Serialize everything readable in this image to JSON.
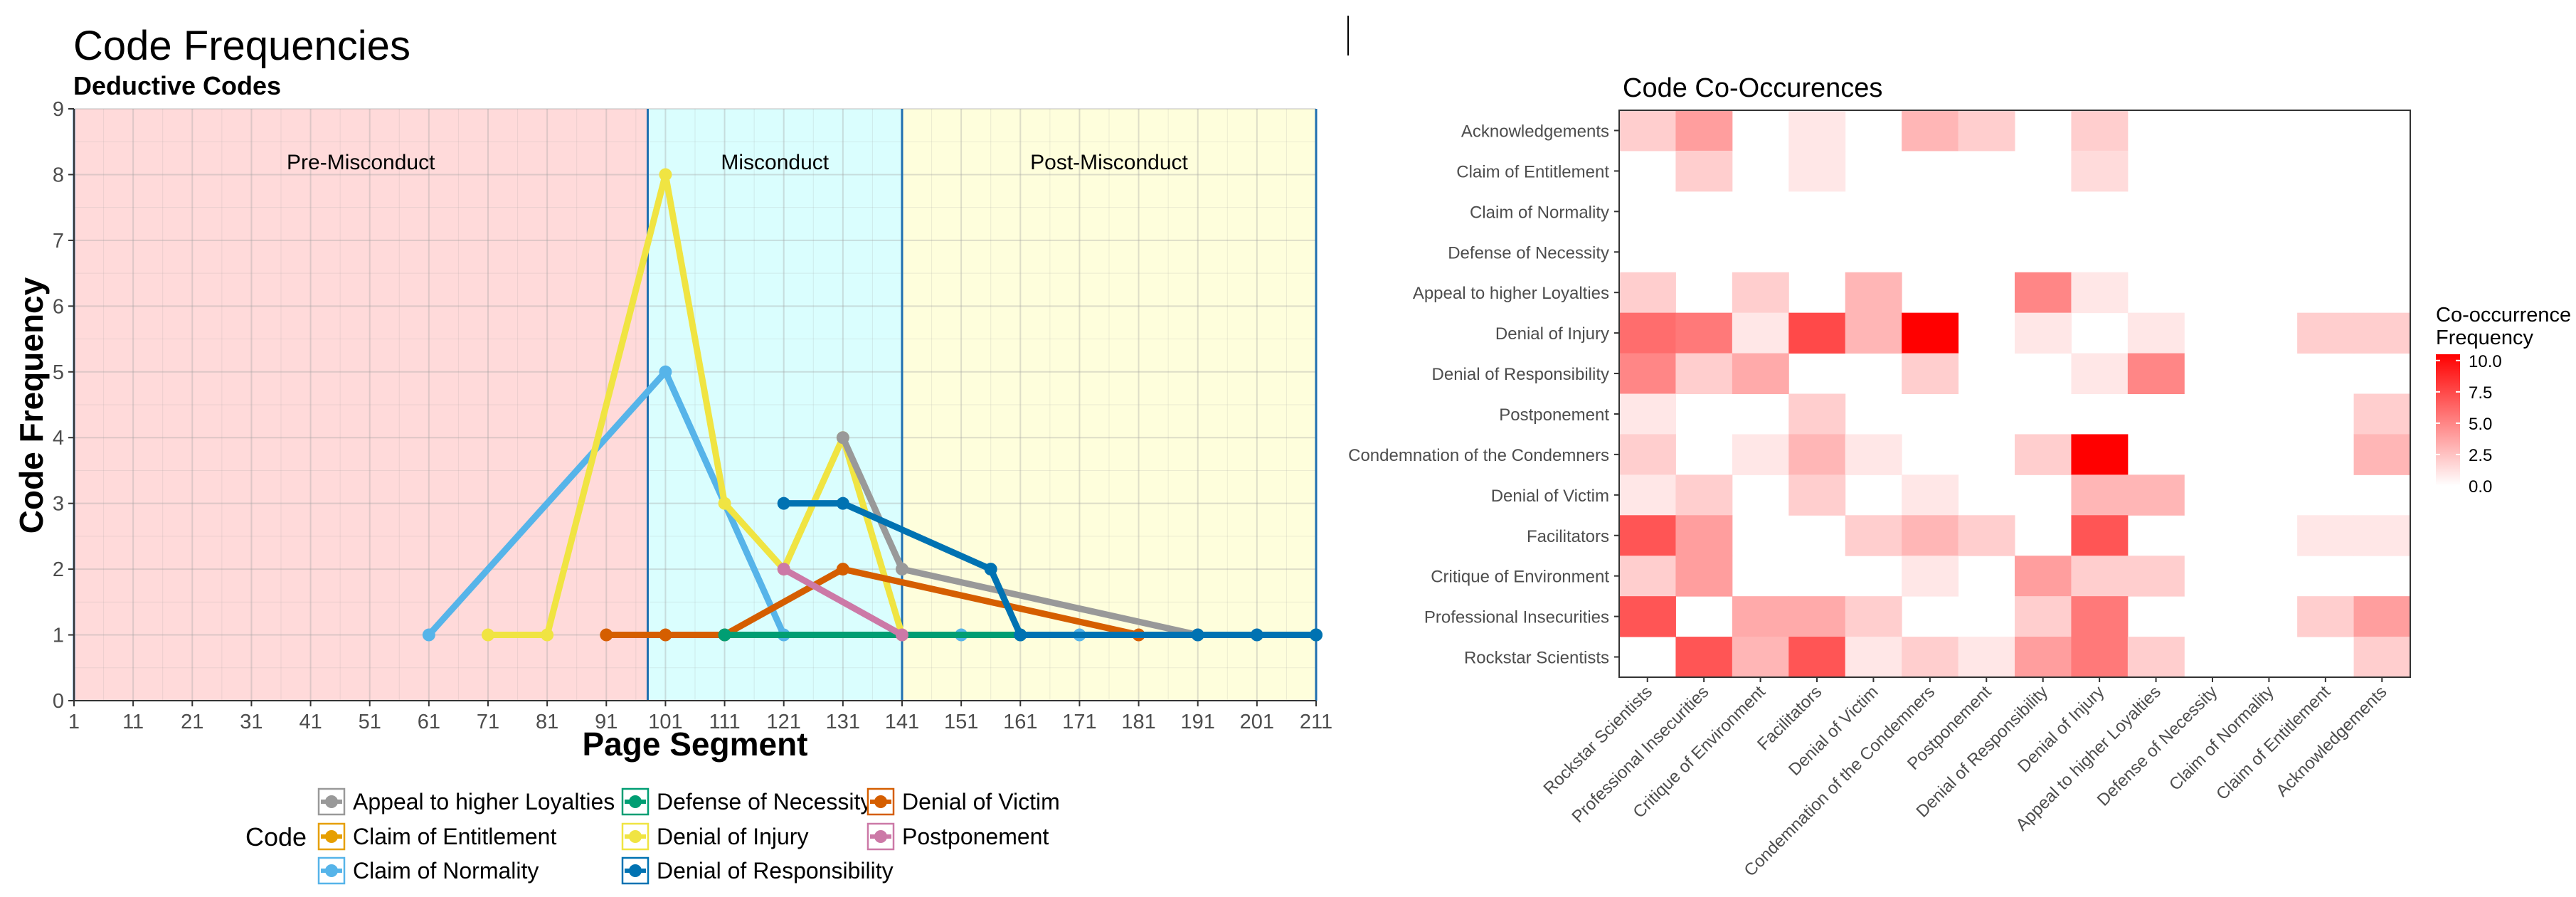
{
  "left_chart": {
    "title": "Code Frequencies",
    "subtitle": "Deductive Codes",
    "xlabel": "Page Segment",
    "ylabel": "Code Frequency",
    "legend_title": "Code"
  },
  "right_chart": {
    "title": "Code Co-Occurences",
    "legend_title_line1": "Co-occurrence",
    "legend_title_line2": "Frequency"
  },
  "chart_data": [
    {
      "type": "line",
      "title": "Code Frequencies",
      "subtitle": "Deductive Codes",
      "xlabel": "Page Segment",
      "ylabel": "Code Frequency",
      "xlim": [
        1,
        211
      ],
      "ylim": [
        0,
        9
      ],
      "x_ticks": [
        "1",
        "11",
        "21",
        "31",
        "41",
        "51",
        "61",
        "71",
        "81",
        "91",
        "101",
        "111",
        "121",
        "131",
        "141",
        "151",
        "161",
        "171",
        "181",
        "191",
        "201",
        "211"
      ],
      "y_ticks": [
        "0",
        "1",
        "2",
        "3",
        "4",
        "5",
        "6",
        "7",
        "8",
        "9"
      ],
      "grid": true,
      "legend_position": "bottom",
      "regions": [
        {
          "label": "Pre-Misconduct",
          "from": 1,
          "to": 98,
          "color": "#ffdada"
        },
        {
          "label": "Misconduct",
          "from": 98,
          "to": 141,
          "color": "#dafefe"
        },
        {
          "label": "Post-Misconduct",
          "from": 141,
          "to": 211,
          "color": "#fefedc"
        }
      ],
      "series": [
        {
          "name": "Claim of Normality",
          "color": "#56b4e9",
          "x": [
            61,
            101,
            121,
            151,
            171
          ],
          "y": [
            1,
            5,
            1,
            1,
            1
          ]
        },
        {
          "name": "Denial of Injury",
          "color": "#f0e442",
          "x": [
            71,
            81,
            101,
            111,
            121,
            131,
            141
          ],
          "y": [
            1,
            1,
            8,
            3,
            2,
            4,
            1
          ]
        },
        {
          "name": "Denial of Victim",
          "color": "#d55e00",
          "x": [
            91,
            101,
            111,
            131,
            181
          ],
          "y": [
            1,
            1,
            1,
            2,
            1
          ]
        },
        {
          "name": "Defense of Necessity",
          "color": "#009e73",
          "x": [
            111,
            161,
            211
          ],
          "y": [
            1,
            1,
            1
          ]
        },
        {
          "name": "Postponement",
          "color": "#cc79a7",
          "x": [
            121,
            141
          ],
          "y": [
            2,
            1
          ]
        },
        {
          "name": "Appeal to higher Loyalties",
          "color": "#999999",
          "x": [
            131,
            141,
            191
          ],
          "y": [
            4,
            2,
            1
          ]
        },
        {
          "name": "Denial of Responsibility",
          "color": "#0072b2",
          "x": [
            121,
            131,
            156,
            161,
            191,
            201,
            211
          ],
          "y": [
            3,
            3,
            2,
            1,
            1,
            1,
            1
          ]
        },
        {
          "name": "Claim of Entitlement",
          "color": "#e69f00",
          "x": [],
          "y": []
        }
      ],
      "legend_order": [
        "Appeal to higher Loyalties",
        "Claim of Entitlement",
        "Claim of Normality",
        "Defense of Necessity",
        "Denial of Injury",
        "Denial of Responsibility",
        "Denial of Victim",
        "Postponement"
      ]
    },
    {
      "type": "heatmap",
      "title": "Code Co-Occurences",
      "legend_title": "Co-occurrence Frequency",
      "color_scale": {
        "low": "#ffffff",
        "high": "#ff0000",
        "min": 0,
        "max": 10.5
      },
      "legend_ticks": [
        "10.0",
        "7.5",
        "5.0",
        "2.5",
        "0.0"
      ],
      "x_labels": [
        "Rockstar Scientists",
        "Professional Insecurities",
        "Critique of Environment",
        "Facilitators",
        "Denial of Victim",
        "Condemnation of the Condemners",
        "Postponement",
        "Denial of Responsibility",
        "Denial of Injury",
        "Appeal to higher Loyalties",
        "Defense of Necessity",
        "Claim of Normality",
        "Claim of Entitlement",
        "Acknowledgements"
      ],
      "y_labels": [
        "Acknowledgements",
        "Claim of Entitlement",
        "Claim of Normality",
        "Defense of Necessity",
        "Appeal to higher Loyalties",
        "Denial of Injury",
        "Denial of Responsibility",
        "Postponement",
        "Condemnation of the Condemners",
        "Denial of Victim",
        "Facilitators",
        "Critique of Environment",
        "Professional Insecurities",
        "Rockstar Scientists"
      ],
      "values": [
        [
          2,
          4,
          0,
          1,
          0,
          3,
          2,
          0,
          2,
          0,
          0,
          0,
          0,
          0
        ],
        [
          0,
          2,
          0,
          1,
          0,
          0,
          0,
          0,
          1.5,
          0,
          0,
          0,
          0,
          0
        ],
        [
          0,
          0,
          0,
          0,
          0,
          0,
          0,
          0,
          0,
          0,
          0,
          0,
          0,
          0
        ],
        [
          0,
          0,
          0,
          0,
          0,
          0,
          0,
          0,
          0,
          0,
          0,
          0,
          0,
          0
        ],
        [
          2,
          0,
          2,
          0,
          3,
          0,
          0,
          5,
          1,
          0,
          0,
          0,
          0,
          0
        ],
        [
          6,
          5.5,
          1,
          7.5,
          3,
          10.5,
          0,
          1,
          0,
          1,
          0,
          0,
          2,
          2
        ],
        [
          5,
          2,
          3.5,
          0,
          0,
          2,
          0,
          0,
          1,
          5,
          0,
          0,
          0,
          0
        ],
        [
          1,
          0,
          0,
          2,
          0,
          0,
          0,
          0,
          0,
          0,
          0,
          0,
          0,
          2
        ],
        [
          2,
          0,
          1,
          3,
          1,
          0,
          0,
          2,
          10.5,
          0,
          0,
          0,
          0,
          3
        ],
        [
          1,
          2,
          0,
          2,
          0,
          1,
          0,
          0,
          3,
          3,
          0,
          0,
          0,
          0
        ],
        [
          7,
          4,
          0,
          0,
          2,
          3,
          2,
          0,
          7,
          0,
          0,
          0,
          1,
          1
        ],
        [
          2,
          4,
          0,
          0,
          0,
          1,
          0,
          4,
          2,
          2,
          0,
          0,
          0,
          0
        ],
        [
          7,
          0,
          3.5,
          3.5,
          2,
          0,
          0,
          2,
          5.5,
          0,
          0,
          0,
          2,
          4
        ],
        [
          0,
          7,
          3,
          7,
          1,
          2,
          1,
          4,
          5.5,
          2,
          0,
          0,
          0,
          2
        ]
      ]
    }
  ]
}
